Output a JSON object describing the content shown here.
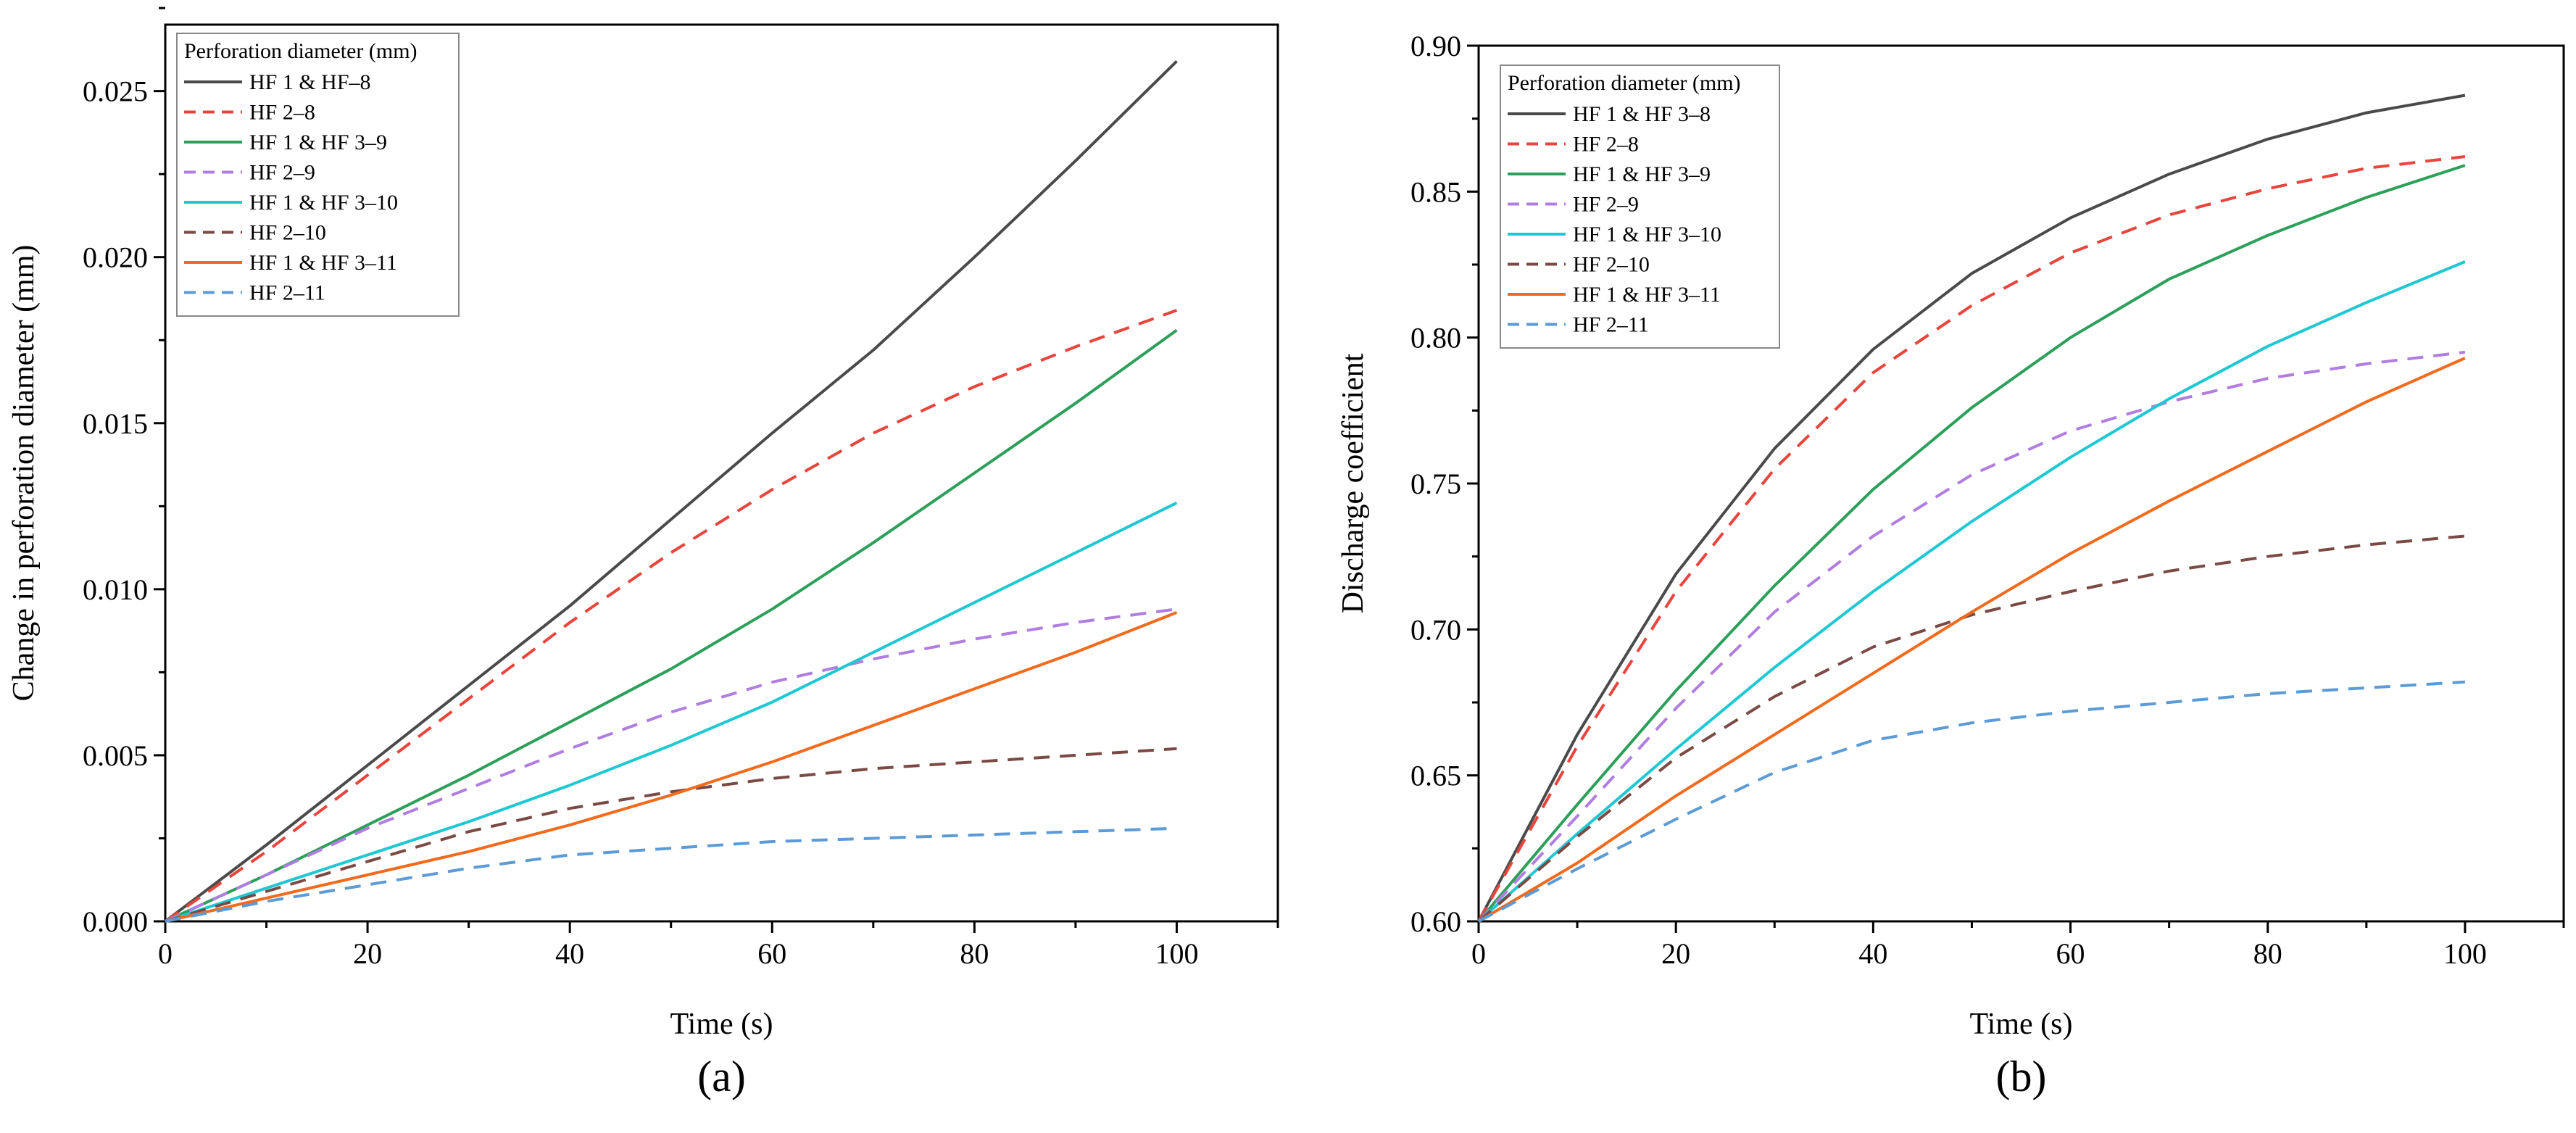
{
  "chart_data": [
    {
      "type": "line",
      "panel_label": "(a)",
      "xlabel": "Time (s)",
      "ylabel": "Change in perforation diameter (mm)",
      "xlim": [
        0,
        110
      ],
      "ylim": [
        0,
        0.027
      ],
      "xticks": [
        0,
        20,
        40,
        60,
        80,
        100
      ],
      "xtick_labels": [
        "0",
        "20",
        "40",
        "60",
        "80",
        "100"
      ],
      "yticks": [
        0,
        0.005,
        0.01,
        0.015,
        0.02,
        0.025
      ],
      "ytick_labels": [
        "0.000",
        "0.005",
        "0.010",
        "0.015",
        "0.020",
        "0.025"
      ],
      "legend_title": "Perforation diameter (mm)",
      "legend_position": "top-left",
      "x": [
        0,
        10,
        20,
        30,
        40,
        50,
        60,
        70,
        80,
        90,
        100
      ],
      "series": [
        {
          "name": "HF 1 & HF–8",
          "color": "#4a4a4a",
          "dash": "solid",
          "values": [
            0,
            0.0023,
            0.0047,
            0.0071,
            0.0095,
            0.0121,
            0.0147,
            0.0172,
            0.02,
            0.0229,
            0.0259
          ]
        },
        {
          "name": "HF 2–8",
          "color": "#e8453c",
          "dash": "dashed",
          "values": [
            0,
            0.0021,
            0.0044,
            0.0067,
            0.009,
            0.0111,
            0.013,
            0.0147,
            0.0161,
            0.0173,
            0.0184
          ]
        },
        {
          "name": "HF 1 & HF 3–9",
          "color": "#2ca05a",
          "dash": "solid",
          "values": [
            0,
            0.0014,
            0.0029,
            0.0044,
            0.006,
            0.0076,
            0.0094,
            0.0114,
            0.0135,
            0.0156,
            0.0178
          ]
        },
        {
          "name": "HF 2–9",
          "color": "#b07ee0",
          "dash": "dashed",
          "values": [
            0,
            0.0014,
            0.0028,
            0.004,
            0.0052,
            0.0063,
            0.0072,
            0.0079,
            0.0085,
            0.009,
            0.0094
          ]
        },
        {
          "name": "HF 1 & HF 3–10",
          "color": "#1ec8d2",
          "dash": "solid",
          "values": [
            0,
            0.001,
            0.002,
            0.003,
            0.0041,
            0.0053,
            0.0066,
            0.0081,
            0.0096,
            0.0111,
            0.0126
          ]
        },
        {
          "name": "HF 2–10",
          "color": "#7b4a44",
          "dash": "dashed",
          "values": [
            0,
            0.0009,
            0.0018,
            0.0027,
            0.0034,
            0.0039,
            0.0043,
            0.0046,
            0.0048,
            0.005,
            0.0052
          ]
        },
        {
          "name": "HF 1 & HF 3–11",
          "color": "#f26a1b",
          "dash": "solid",
          "values": [
            0,
            0.0007,
            0.0014,
            0.0021,
            0.0029,
            0.0038,
            0.0048,
            0.0059,
            0.007,
            0.0081,
            0.0093
          ]
        },
        {
          "name": "HF 2–11",
          "color": "#5c9bd5",
          "dash": "dashed",
          "values": [
            0,
            0.0006,
            0.0011,
            0.0016,
            0.002,
            0.0022,
            0.0024,
            0.0025,
            0.0026,
            0.0027,
            0.0028
          ]
        }
      ]
    },
    {
      "type": "line",
      "panel_label": "(b)",
      "xlabel": "Time (s)",
      "ylabel": "Discharge coefficient",
      "xlim": [
        0,
        110
      ],
      "ylim": [
        0.6,
        0.9
      ],
      "xticks": [
        0,
        20,
        40,
        60,
        80,
        100
      ],
      "xtick_labels": [
        "0",
        "20",
        "40",
        "60",
        "80",
        "100"
      ],
      "yticks": [
        0.6,
        0.65,
        0.7,
        0.75,
        0.8,
        0.85,
        0.9
      ],
      "ytick_labels": [
        "0.60",
        "0.65",
        "0.70",
        "0.75",
        "0.80",
        "0.85",
        "0.90"
      ],
      "legend_title": "Perforation diameter (mm)",
      "legend_position": "top-left",
      "x": [
        0,
        10,
        20,
        30,
        40,
        50,
        60,
        70,
        80,
        90,
        100
      ],
      "series": [
        {
          "name": "HF 1 & HF 3–8",
          "color": "#4a4a4a",
          "dash": "solid",
          "values": [
            0.6,
            0.664,
            0.719,
            0.762,
            0.796,
            0.822,
            0.841,
            0.856,
            0.868,
            0.877,
            0.883
          ]
        },
        {
          "name": "HF 2–8",
          "color": "#e8453c",
          "dash": "dashed",
          "values": [
            0.6,
            0.66,
            0.713,
            0.755,
            0.788,
            0.811,
            0.829,
            0.842,
            0.851,
            0.858,
            0.862
          ]
        },
        {
          "name": "HF 1 & HF 3–9",
          "color": "#2ca05a",
          "dash": "solid",
          "values": [
            0.6,
            0.64,
            0.679,
            0.715,
            0.748,
            0.776,
            0.8,
            0.82,
            0.835,
            0.848,
            0.859
          ]
        },
        {
          "name": "HF 2–9",
          "color": "#b07ee0",
          "dash": "dashed",
          "values": [
            0.6,
            0.636,
            0.673,
            0.706,
            0.732,
            0.753,
            0.768,
            0.778,
            0.786,
            0.791,
            0.795
          ]
        },
        {
          "name": "HF 1 & HF 3–10",
          "color": "#1ec8d2",
          "dash": "solid",
          "values": [
            0.6,
            0.63,
            0.659,
            0.687,
            0.713,
            0.737,
            0.759,
            0.779,
            0.797,
            0.812,
            0.826
          ]
        },
        {
          "name": "HF 2–10",
          "color": "#7b4a44",
          "dash": "dashed",
          "values": [
            0.6,
            0.629,
            0.656,
            0.677,
            0.694,
            0.705,
            0.713,
            0.72,
            0.725,
            0.729,
            0.732
          ]
        },
        {
          "name": "HF 1 & HF 3–11",
          "color": "#f26a1b",
          "dash": "solid",
          "values": [
            0.6,
            0.62,
            0.643,
            0.664,
            0.685,
            0.706,
            0.726,
            0.744,
            0.761,
            0.778,
            0.793
          ]
        },
        {
          "name": "HF 2–11",
          "color": "#5c9bd5",
          "dash": "dashed",
          "values": [
            0.6,
            0.618,
            0.635,
            0.651,
            0.662,
            0.668,
            0.672,
            0.675,
            0.678,
            0.68,
            0.682
          ]
        }
      ]
    }
  ]
}
